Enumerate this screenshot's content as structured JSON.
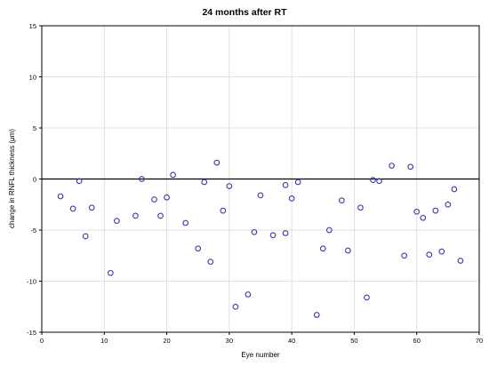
{
  "chart_data": {
    "type": "scatter",
    "title": "24 months after RT",
    "xlabel": "Eye number",
    "ylabel": "change in RNFL thickness (μm)",
    "xlim": [
      0,
      70
    ],
    "ylim": [
      -15,
      15
    ],
    "xticks": [
      0,
      10,
      20,
      30,
      40,
      50,
      60,
      70
    ],
    "yticks": [
      15,
      10,
      5,
      0,
      -5,
      -10,
      -15
    ],
    "grid": true,
    "reference_line_y": 0,
    "marker_color": "#3a3aa8",
    "points": [
      {
        "x": 3,
        "y": -1.7
      },
      {
        "x": 5,
        "y": -2.9
      },
      {
        "x": 6,
        "y": -0.2
      },
      {
        "x": 7,
        "y": -5.6
      },
      {
        "x": 8,
        "y": -2.8
      },
      {
        "x": 11,
        "y": -9.2
      },
      {
        "x": 12,
        "y": -4.1
      },
      {
        "x": 15,
        "y": -3.6
      },
      {
        "x": 16,
        "y": 0.0
      },
      {
        "x": 18,
        "y": -2.0
      },
      {
        "x": 19,
        "y": -3.6
      },
      {
        "x": 20,
        "y": -1.8
      },
      {
        "x": 21,
        "y": 0.4
      },
      {
        "x": 23,
        "y": -4.3
      },
      {
        "x": 25,
        "y": -6.8
      },
      {
        "x": 26,
        "y": -0.3
      },
      {
        "x": 27,
        "y": -8.1
      },
      {
        "x": 28,
        "y": 1.6
      },
      {
        "x": 29,
        "y": -3.1
      },
      {
        "x": 30,
        "y": -0.7
      },
      {
        "x": 31,
        "y": -12.5
      },
      {
        "x": 33,
        "y": -11.3
      },
      {
        "x": 34,
        "y": -5.2
      },
      {
        "x": 35,
        "y": -1.6
      },
      {
        "x": 37,
        "y": -5.5
      },
      {
        "x": 39,
        "y": -5.3
      },
      {
        "x": 39,
        "y": -0.6
      },
      {
        "x": 40,
        "y": -1.9
      },
      {
        "x": 41,
        "y": -0.3
      },
      {
        "x": 44,
        "y": -13.3
      },
      {
        "x": 45,
        "y": -6.8
      },
      {
        "x": 46,
        "y": -5.0
      },
      {
        "x": 48,
        "y": -2.1
      },
      {
        "x": 49,
        "y": -7.0
      },
      {
        "x": 51,
        "y": -2.8
      },
      {
        "x": 52,
        "y": -11.6
      },
      {
        "x": 53,
        "y": -0.1
      },
      {
        "x": 54,
        "y": -0.2
      },
      {
        "x": 56,
        "y": 1.3
      },
      {
        "x": 58,
        "y": -7.5
      },
      {
        "x": 59,
        "y": 1.2
      },
      {
        "x": 60,
        "y": -3.2
      },
      {
        "x": 61,
        "y": -3.8
      },
      {
        "x": 62,
        "y": -7.4
      },
      {
        "x": 63,
        "y": -3.1
      },
      {
        "x": 64,
        "y": -7.1
      },
      {
        "x": 65,
        "y": -2.5
      },
      {
        "x": 66,
        "y": -1.0
      },
      {
        "x": 67,
        "y": -8.0
      }
    ]
  }
}
